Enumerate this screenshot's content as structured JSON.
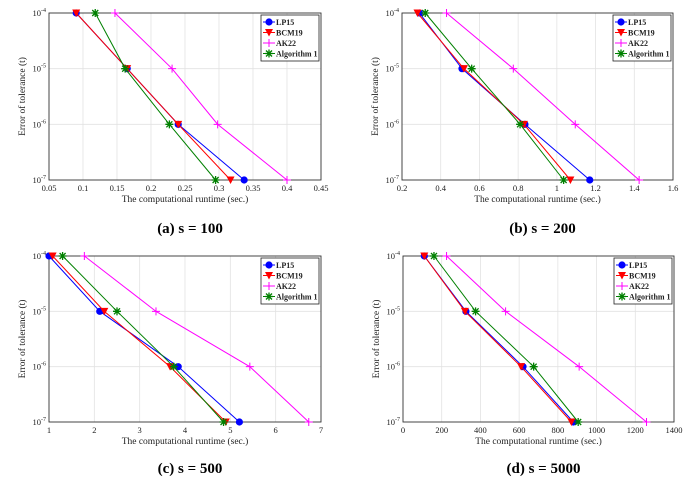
{
  "colors": {
    "LP15": "#0000ff",
    "BCM19": "#ff0000",
    "AK22": "#ff00ff",
    "Algorithm 1": "#008000"
  },
  "chart_data": [
    {
      "type": "line",
      "caption": "(a) s = 100",
      "xlabel": "The computational runtime (sec.)",
      "ylabel": "Error of tolerance (t)",
      "xlim": [
        0.05,
        0.45
      ],
      "xticks": [
        "0.05",
        "0.1",
        "0.15",
        "0.2",
        "0.25",
        "0.3",
        "0.35",
        "0.4",
        "0.45"
      ],
      "yscale": "log",
      "ylim": [
        1e-07,
        0.0001
      ],
      "yticks": [
        "10-7",
        "10-6",
        "10-5",
        "10-4"
      ],
      "y": [
        0.0001,
        1e-05,
        1e-06,
        1e-07
      ],
      "grid": true,
      "legend": "top-right",
      "series": [
        {
          "name": "LP15",
          "x": [
            0.09,
            0.165,
            0.24,
            0.337
          ]
        },
        {
          "name": "BCM19",
          "x": [
            0.09,
            0.165,
            0.24,
            0.317
          ]
        },
        {
          "name": "AK22",
          "x": [
            0.147,
            0.231,
            0.298,
            0.4
          ]
        },
        {
          "name": "Algorithm 1",
          "x": [
            0.118,
            0.162,
            0.227,
            0.295
          ]
        }
      ]
    },
    {
      "type": "line",
      "caption": "(b) s = 200",
      "xlabel": "The computational runtime (sec.)",
      "ylabel": "Error of tolerance (t)",
      "xlim": [
        0.2,
        1.6
      ],
      "xticks": [
        "0.2",
        "0.4",
        "0.6",
        "0.8",
        "1",
        "1.2",
        "1.4",
        "1.6"
      ],
      "yscale": "log",
      "ylim": [
        1e-07,
        0.0001
      ],
      "yticks": [
        "10-7",
        "10-6",
        "10-5",
        "10-4"
      ],
      "y": [
        0.0001,
        1e-05,
        1e-06,
        1e-07
      ],
      "grid": true,
      "legend": "top-right",
      "series": [
        {
          "name": "LP15",
          "x": [
            0.29,
            0.51,
            0.835,
            1.17
          ]
        },
        {
          "name": "BCM19",
          "x": [
            0.28,
            0.52,
            0.83,
            1.07
          ]
        },
        {
          "name": "AK22",
          "x": [
            0.43,
            0.775,
            1.095,
            1.425
          ]
        },
        {
          "name": "Algorithm 1",
          "x": [
            0.32,
            0.56,
            0.81,
            1.035
          ]
        }
      ]
    },
    {
      "type": "line",
      "caption": "(c) s = 500",
      "xlabel": "The computational runtime (sec.)",
      "ylabel": "Error of tolerance (t)",
      "xlim": [
        1,
        7
      ],
      "xticks": [
        "1",
        "2",
        "3",
        "4",
        "5",
        "6",
        "7"
      ],
      "yscale": "log",
      "ylim": [
        1e-07,
        0.0001
      ],
      "yticks": [
        "10-7",
        "10-6",
        "10-5",
        "10-4"
      ],
      "y": [
        0.0001,
        1e-05,
        1e-06,
        1e-07
      ],
      "grid": true,
      "legend": "top-right",
      "series": [
        {
          "name": "LP15",
          "x": [
            1.0,
            2.12,
            3.85,
            5.2
          ]
        },
        {
          "name": "BCM19",
          "x": [
            1.08,
            2.22,
            3.67,
            4.9
          ]
        },
        {
          "name": "AK22",
          "x": [
            1.78,
            3.36,
            5.43,
            6.73
          ]
        },
        {
          "name": "Algorithm 1",
          "x": [
            1.3,
            2.5,
            3.75,
            4.85
          ]
        }
      ]
    },
    {
      "type": "line",
      "caption": "(d) s = 5000",
      "xlabel": "The computational runtime (sec.)",
      "ylabel": "Error of tolerance (t)",
      "xlim": [
        0,
        1400
      ],
      "xticks": [
        "0",
        "200",
        "400",
        "600",
        "800",
        "1000",
        "1200",
        "1400"
      ],
      "yscale": "log",
      "ylim": [
        1e-07,
        0.0001
      ],
      "yticks": [
        "10-7",
        "10-6",
        "10-5",
        "10-4"
      ],
      "y": [
        0.0001,
        1e-05,
        1e-06,
        1e-07
      ],
      "grid": true,
      "legend": "top-right",
      "series": [
        {
          "name": "LP15",
          "x": [
            110,
            325,
            620,
            880
          ]
        },
        {
          "name": "BCM19",
          "x": [
            110,
            320,
            610,
            870
          ]
        },
        {
          "name": "AK22",
          "x": [
            225,
            530,
            910,
            1258
          ]
        },
        {
          "name": "Algorithm 1",
          "x": [
            160,
            375,
            675,
            905
          ]
        }
      ]
    }
  ]
}
